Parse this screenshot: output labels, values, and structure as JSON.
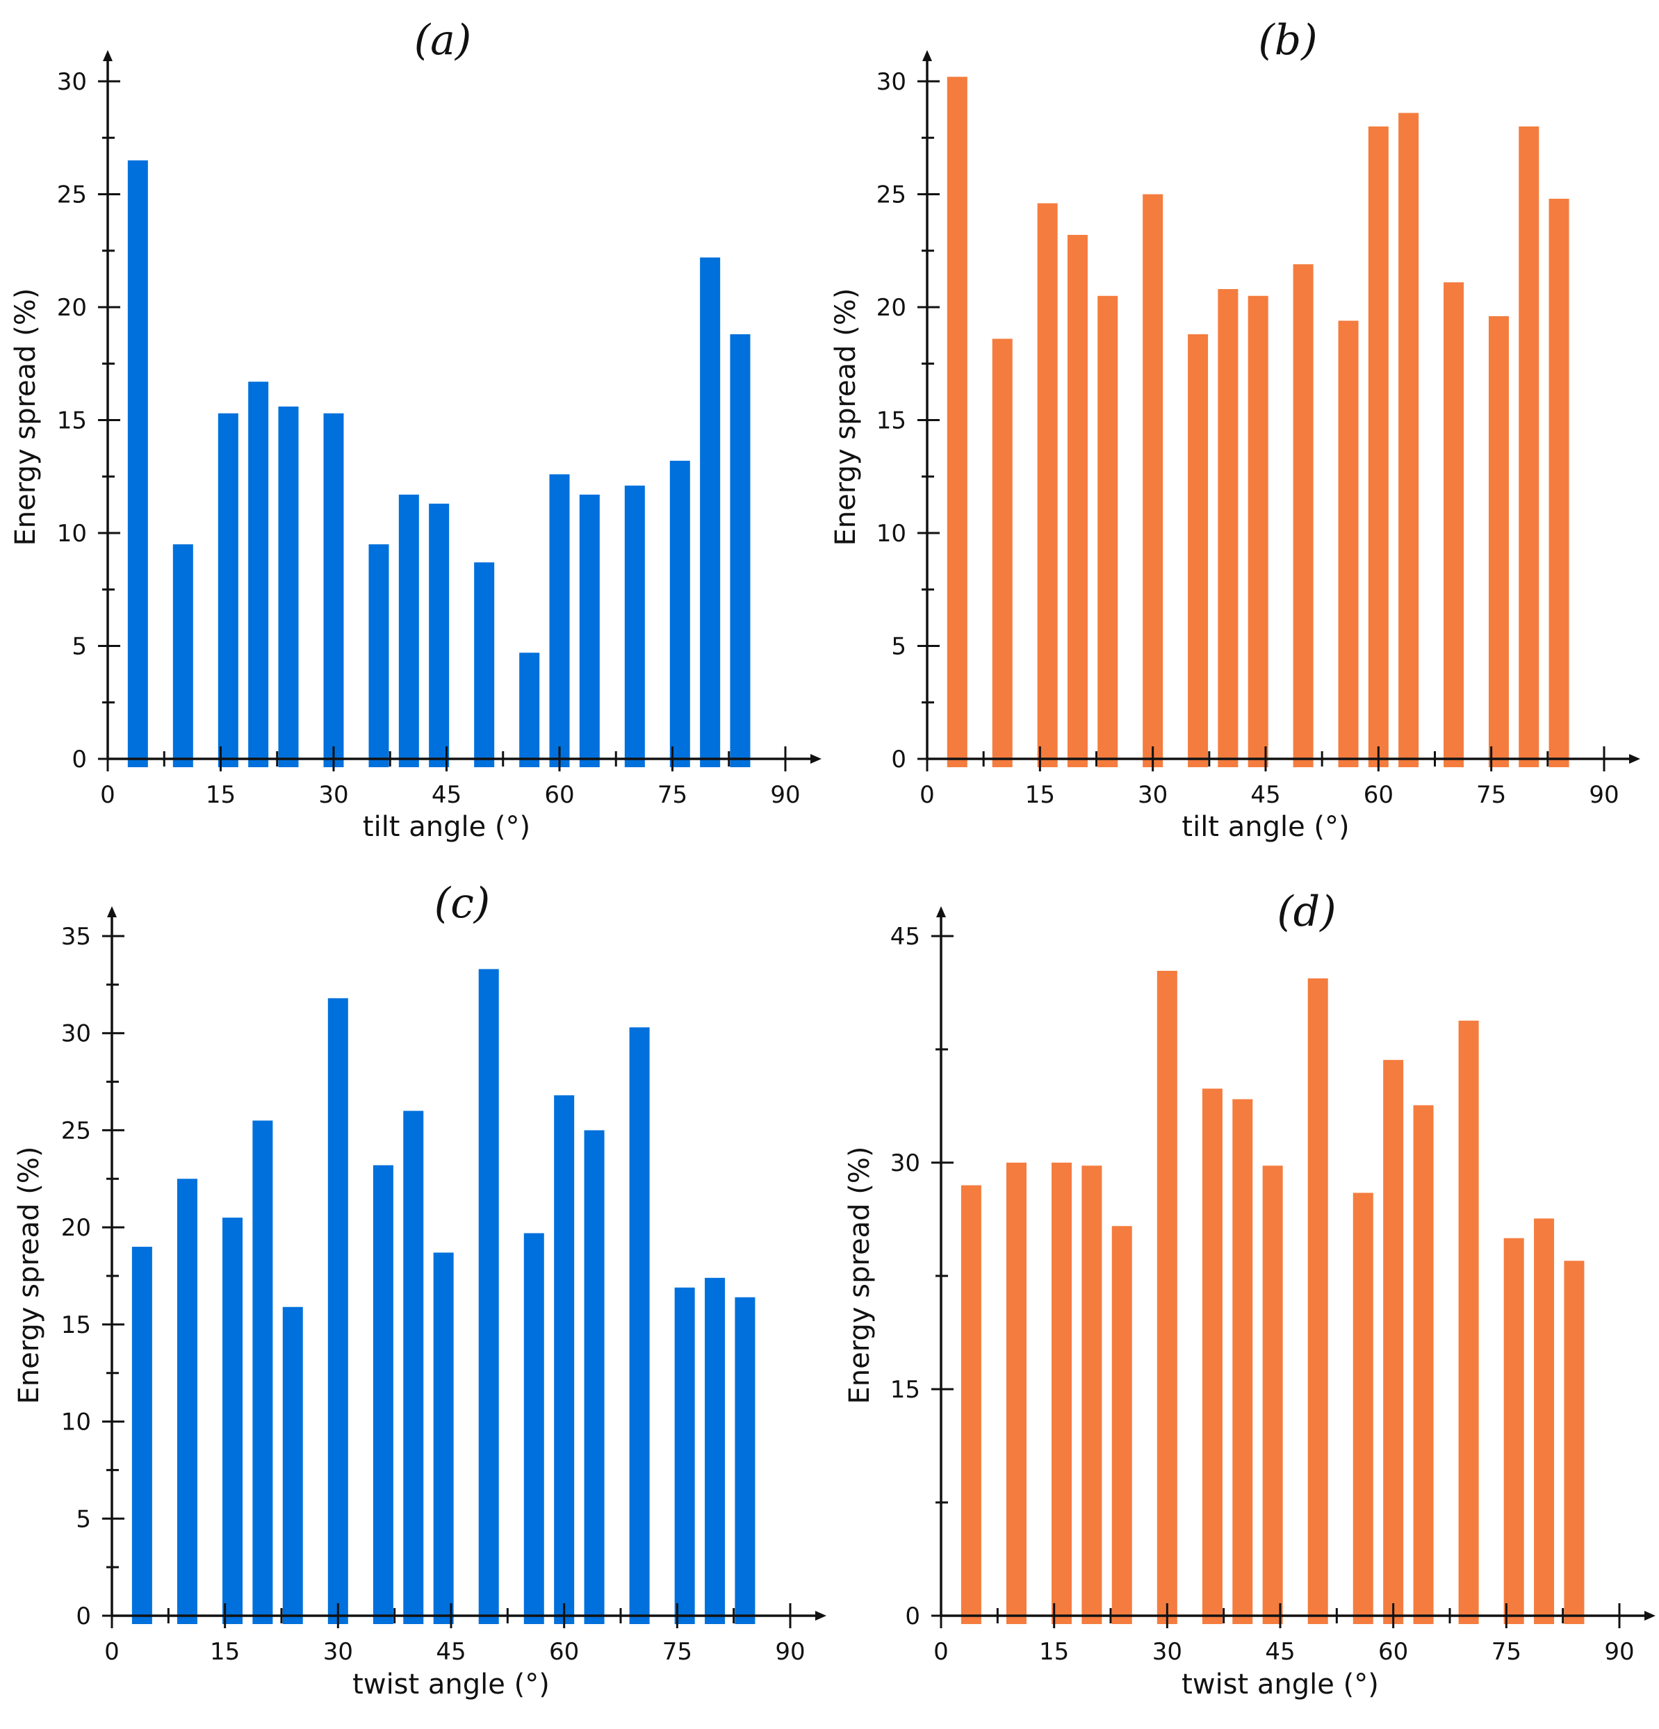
{
  "colors": {
    "blue": "#0070DC",
    "orange": "#F47C3E",
    "axis": "#111111"
  },
  "chart_data": [
    {
      "panel": "(a)",
      "type": "bar",
      "title": "(a)",
      "xlabel": "tilt angle (°)",
      "ylabel": "Energy spread (%)",
      "xlim": [
        0,
        90
      ],
      "ylim": [
        0,
        30
      ],
      "x_ticks": [
        0,
        15,
        30,
        45,
        60,
        75,
        90
      ],
      "y_ticks": [
        0,
        5,
        10,
        15,
        20,
        25,
        30
      ],
      "color": "#0070DC",
      "x": [
        4,
        10,
        16,
        20,
        24,
        30,
        36,
        40,
        44,
        50,
        56,
        60,
        64,
        70,
        76,
        80,
        84
      ],
      "values": [
        26.5,
        9.5,
        15.3,
        16.7,
        15.6,
        15.3,
        9.5,
        11.7,
        11.3,
        8.7,
        4.7,
        12.6,
        11.7,
        12.1,
        13.2,
        22.2,
        18.8
      ]
    },
    {
      "panel": "(b)",
      "type": "bar",
      "title": "(b)",
      "xlabel": "tilt angle (°)",
      "ylabel": "Energy spread (%)",
      "xlim": [
        0,
        90
      ],
      "ylim": [
        0,
        30
      ],
      "x_ticks": [
        0,
        15,
        30,
        45,
        60,
        75,
        90
      ],
      "y_ticks": [
        0,
        5,
        10,
        15,
        20,
        25,
        30
      ],
      "color": "#F47C3E",
      "x": [
        4,
        10,
        16,
        20,
        24,
        30,
        36,
        40,
        44,
        50,
        56,
        60,
        64,
        70,
        76,
        80,
        84
      ],
      "values": [
        30.2,
        18.6,
        24.6,
        23.2,
        20.5,
        25.0,
        18.8,
        20.8,
        20.5,
        21.9,
        19.4,
        28.0,
        28.6,
        21.1,
        19.6,
        28.0,
        24.8
      ]
    },
    {
      "panel": "(c)",
      "type": "bar",
      "title": "(c)",
      "xlabel": "twist angle (°)",
      "ylabel": "Energy spread (%)",
      "xlim": [
        0,
        90
      ],
      "ylim": [
        0,
        35
      ],
      "x_ticks": [
        0,
        15,
        30,
        45,
        60,
        75,
        90
      ],
      "y_ticks": [
        0,
        5,
        10,
        15,
        20,
        25,
        30,
        35
      ],
      "color": "#0070DC",
      "x": [
        4,
        10,
        16,
        20,
        24,
        30,
        36,
        40,
        44,
        50,
        56,
        60,
        64,
        70,
        76,
        80,
        84
      ],
      "values": [
        19.0,
        22.5,
        20.5,
        25.5,
        15.9,
        31.8,
        23.2,
        26.0,
        18.7,
        33.3,
        19.7,
        26.8,
        25.0,
        30.3,
        16.9,
        17.4,
        16.4
      ]
    },
    {
      "panel": "(d)",
      "type": "bar",
      "title": "(d)",
      "xlabel": "twist angle (°)",
      "ylabel": "Energy spread (%)",
      "xlim": [
        0,
        90
      ],
      "ylim": [
        0,
        45
      ],
      "x_ticks": [
        0,
        15,
        30,
        45,
        60,
        75,
        90
      ],
      "y_ticks": [
        0,
        15,
        30,
        45
      ],
      "color": "#F47C3E",
      "x": [
        4,
        10,
        16,
        20,
        24,
        30,
        36,
        40,
        44,
        50,
        56,
        60,
        64,
        70,
        76,
        80,
        84
      ],
      "values": [
        28.5,
        30.0,
        30.0,
        29.8,
        25.8,
        42.7,
        34.9,
        34.2,
        29.8,
        42.2,
        28.0,
        36.8,
        33.8,
        39.4,
        25.0,
        26.3,
        23.5
      ]
    }
  ]
}
